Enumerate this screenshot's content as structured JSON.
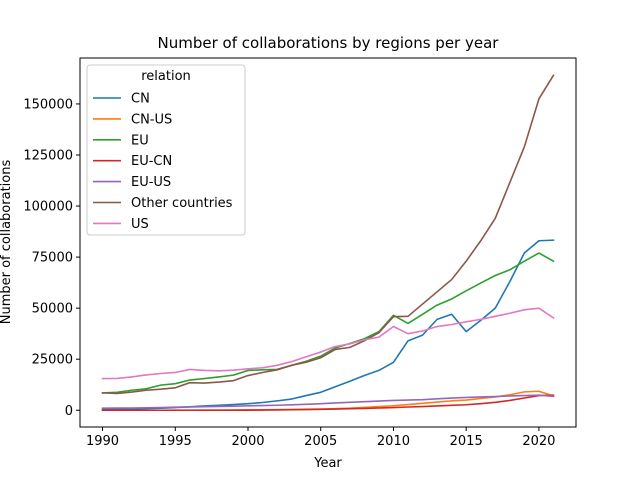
{
  "chart_data": {
    "type": "line",
    "title": "Number of collaborations by regions per year",
    "xlabel": "Year",
    "ylabel": "Number of collaborations",
    "xlim": [
      1988.45,
      2022.55
    ],
    "ylim": [
      -8200,
      172500
    ],
    "xticks": [
      1990,
      1995,
      2000,
      2005,
      2010,
      2015,
      2020
    ],
    "yticks": [
      0,
      25000,
      50000,
      75000,
      100000,
      125000,
      150000
    ],
    "grid": false,
    "legend": {
      "title": "relation",
      "placement": "upper-left"
    },
    "x": [
      1990,
      1991,
      1992,
      1993,
      1994,
      1995,
      1996,
      1997,
      1998,
      1999,
      2000,
      2001,
      2002,
      2003,
      2004,
      2005,
      2006,
      2007,
      2008,
      2009,
      2010,
      2011,
      2012,
      2013,
      2014,
      2015,
      2016,
      2017,
      2018,
      2019,
      2020,
      2021
    ],
    "series": [
      {
        "name": "CN",
        "color": "#1f77b4",
        "values": [
          500,
          600,
          700,
          800,
          1000,
          1300,
          1700,
          2100,
          2400,
          2800,
          3200,
          3800,
          4600,
          5500,
          7200,
          8800,
          11500,
          14200,
          17000,
          19500,
          23500,
          34000,
          36800,
          44500,
          47000,
          38500,
          44000,
          50000,
          63000,
          77000,
          83000,
          83300
        ]
      },
      {
        "name": "CN-US",
        "color": "#ff7f0e",
        "values": [
          0,
          0,
          0,
          0,
          0,
          50,
          50,
          100,
          100,
          150,
          200,
          250,
          300,
          400,
          500,
          600,
          800,
          1000,
          1400,
          1800,
          2200,
          2800,
          3400,
          4000,
          4600,
          5000,
          5800,
          6500,
          7600,
          9000,
          9300,
          7000
        ]
      },
      {
        "name": "EU",
        "color": "#2ca02c",
        "values": [
          8500,
          8800,
          9800,
          10500,
          12300,
          13000,
          14800,
          15500,
          16300,
          17200,
          19500,
          19800,
          20000,
          22000,
          24000,
          26500,
          30500,
          32700,
          35000,
          38500,
          46500,
          42500,
          47000,
          51500,
          54500,
          58500,
          62300,
          66000,
          68800,
          73000,
          77000,
          73000
        ]
      },
      {
        "name": "EU-CN",
        "color": "#d62728",
        "values": [
          0,
          0,
          0,
          0,
          0,
          0,
          0,
          0,
          0,
          0,
          50,
          100,
          150,
          250,
          350,
          450,
          600,
          750,
          900,
          1100,
          1300,
          1600,
          1800,
          2100,
          2400,
          2700,
          3200,
          3900,
          4800,
          6000,
          7200,
          7400
        ]
      },
      {
        "name": "EU-US",
        "color": "#9467bd",
        "values": [
          1000,
          1050,
          1100,
          1200,
          1350,
          1500,
          1650,
          1750,
          1850,
          2000,
          2150,
          2300,
          2450,
          2650,
          2900,
          3200,
          3600,
          3900,
          4200,
          4500,
          4800,
          5000,
          5200,
          5600,
          5950,
          6300,
          6500,
          6700,
          7000,
          7200,
          7400,
          6800
        ]
      },
      {
        "name": "Other countries",
        "color": "#8c564b",
        "values": [
          8500,
          8200,
          8900,
          9800,
          10300,
          11000,
          13500,
          13300,
          13800,
          14500,
          17000,
          18500,
          19800,
          22000,
          23500,
          25700,
          29800,
          30800,
          34000,
          38000,
          45800,
          46000,
          52000,
          58000,
          64000,
          73000,
          83000,
          94000,
          111500,
          129000,
          152500,
          164000
        ]
      },
      {
        "name": "US",
        "color": "#e377c2",
        "values": [
          15500,
          15600,
          16300,
          17300,
          18000,
          18500,
          20000,
          19500,
          19300,
          19600,
          20300,
          20800,
          22000,
          23800,
          26200,
          28500,
          31200,
          32500,
          34500,
          35800,
          41000,
          37500,
          38800,
          41000,
          42000,
          43300,
          44500,
          46000,
          47500,
          49200,
          50000,
          45200
        ]
      }
    ]
  }
}
